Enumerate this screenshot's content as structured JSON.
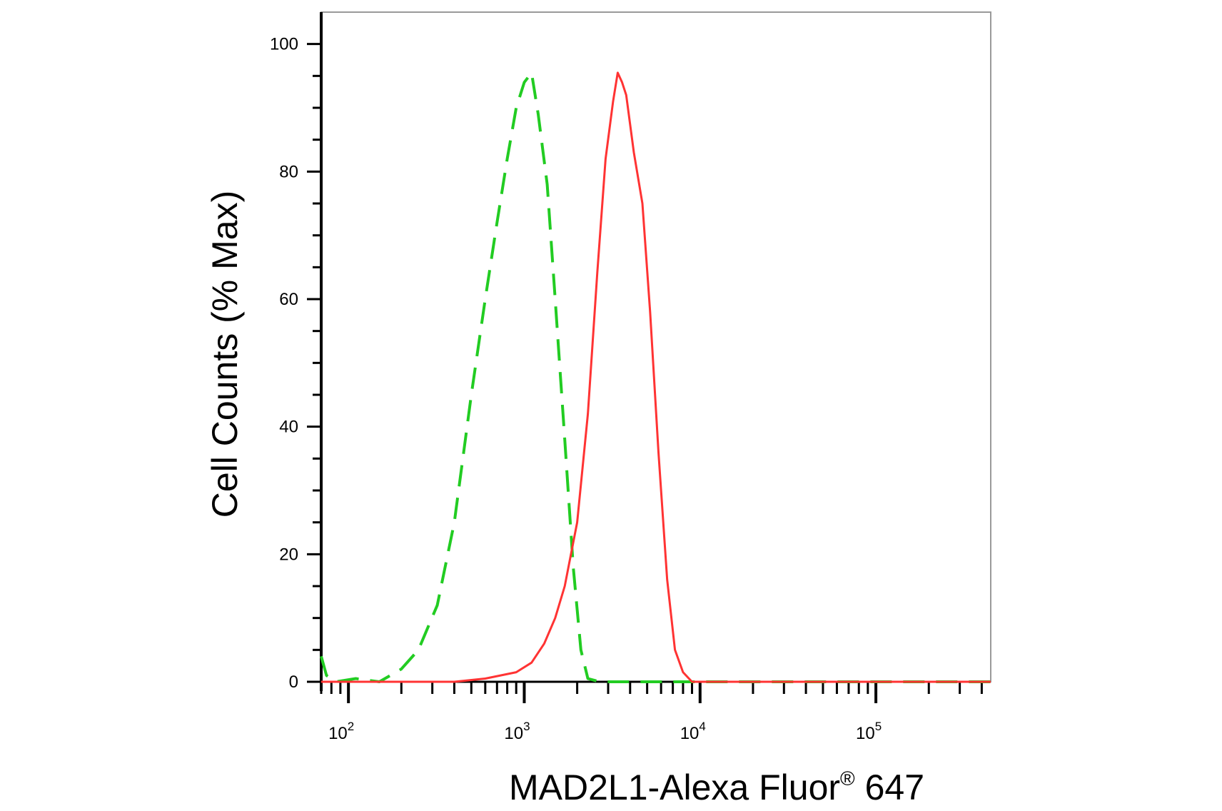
{
  "chart_data": {
    "type": "line",
    "xlabel": "MAD2L1-Alexa Fluor",
    "xlabel_sup": "®",
    "xlabel_suffix": " 647",
    "ylabel": "Cell Counts (% Max)",
    "x_scale": "log",
    "xlim": [
      70,
      450000
    ],
    "ylim": [
      0,
      105
    ],
    "x_major_ticks": [
      {
        "value": 100,
        "base": "10",
        "exp": "2"
      },
      {
        "value": 1000,
        "base": "10",
        "exp": "3"
      },
      {
        "value": 10000,
        "base": "10",
        "exp": "4"
      },
      {
        "value": 100000,
        "base": "10",
        "exp": "5"
      }
    ],
    "y_ticks": [
      {
        "value": 0,
        "label": "0"
      },
      {
        "value": 20,
        "label": "20"
      },
      {
        "value": 40,
        "label": "40"
      },
      {
        "value": 60,
        "label": "60"
      },
      {
        "value": 80,
        "label": "80"
      },
      {
        "value": 100,
        "label": "100"
      }
    ],
    "grid": false,
    "series": [
      {
        "color": "#22cc22",
        "dash": true,
        "points": [
          [
            70,
            4
          ],
          [
            75,
            1
          ],
          [
            85,
            0
          ],
          [
            110,
            0.5
          ],
          [
            150,
            0
          ],
          [
            200,
            2
          ],
          [
            250,
            5
          ],
          [
            320,
            12
          ],
          [
            400,
            25
          ],
          [
            500,
            45
          ],
          [
            600,
            60
          ],
          [
            700,
            72
          ],
          [
            800,
            82
          ],
          [
            900,
            90
          ],
          [
            1000,
            94
          ],
          [
            1100,
            95.5
          ],
          [
            1200,
            89
          ],
          [
            1350,
            78
          ],
          [
            1500,
            60
          ],
          [
            1700,
            38
          ],
          [
            1900,
            18
          ],
          [
            2100,
            5
          ],
          [
            2300,
            0.5
          ],
          [
            2700,
            0
          ],
          [
            10000,
            0
          ],
          [
            450000,
            0
          ]
        ]
      },
      {
        "color": "#ff3333",
        "dash": false,
        "points": [
          [
            70,
            0
          ],
          [
            400,
            0
          ],
          [
            600,
            0.5
          ],
          [
            900,
            1.5
          ],
          [
            1100,
            3
          ],
          [
            1300,
            6
          ],
          [
            1500,
            10
          ],
          [
            1700,
            15
          ],
          [
            2000,
            25
          ],
          [
            2300,
            42
          ],
          [
            2600,
            64
          ],
          [
            2900,
            82
          ],
          [
            3200,
            91
          ],
          [
            3400,
            95.5
          ],
          [
            3600,
            94
          ],
          [
            3800,
            92
          ],
          [
            4200,
            83
          ],
          [
            4700,
            75
          ],
          [
            5200,
            58
          ],
          [
            5800,
            36
          ],
          [
            6500,
            16
          ],
          [
            7200,
            5
          ],
          [
            8000,
            1.5
          ],
          [
            9000,
            0
          ],
          [
            450000,
            0
          ]
        ]
      }
    ]
  }
}
